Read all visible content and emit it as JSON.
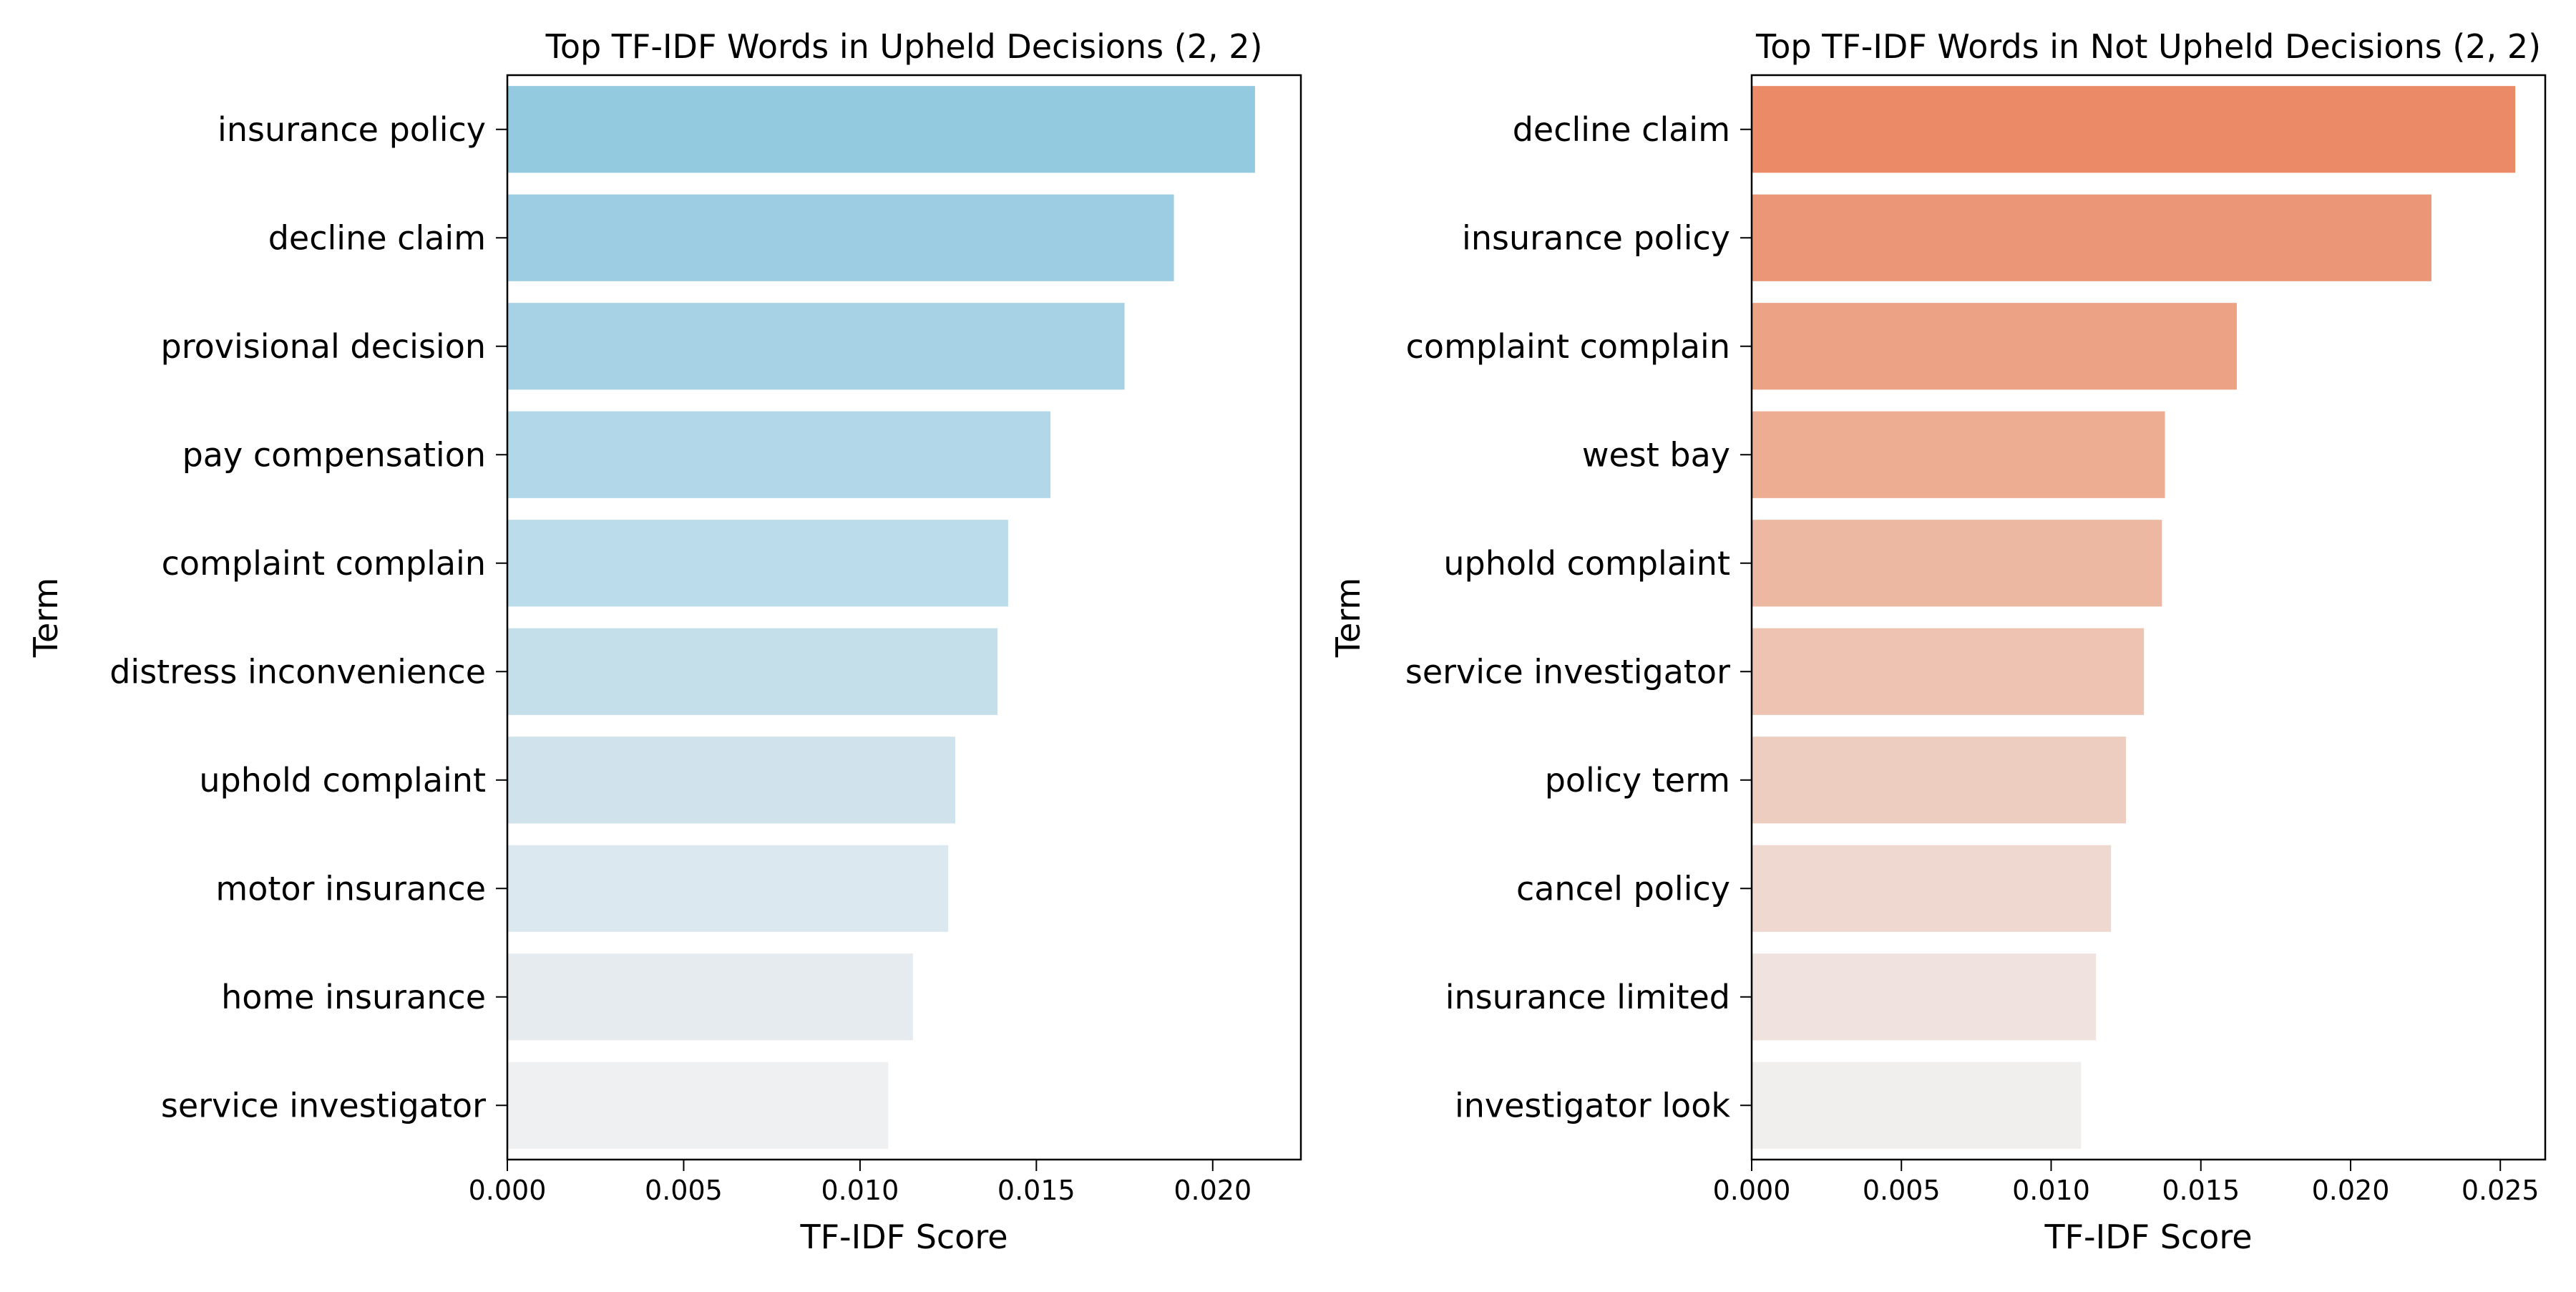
{
  "chart_data": [
    {
      "type": "bar",
      "orientation": "horizontal",
      "title": "Top TF-IDF Words in Upheld Decisions (2, 2)",
      "xlabel": "TF-IDF Score",
      "ylabel": "Term",
      "xlim": [
        0,
        0.0225
      ],
      "xticks": [
        "0.000",
        "0.005",
        "0.010",
        "0.015",
        "0.020"
      ],
      "grid": false,
      "categories": [
        "insurance policy",
        "decline claim",
        "provisional decision",
        "pay compensation",
        "complaint complain",
        "distress inconvenience",
        "uphold complaint",
        "motor insurance",
        "home insurance",
        "service investigator"
      ],
      "values": [
        0.0212,
        0.0189,
        0.0175,
        0.0154,
        0.0142,
        0.0139,
        0.0127,
        0.0125,
        0.0115,
        0.0108
      ],
      "colors": [
        "#93CAE0",
        "#9DCDE2",
        "#A7D2E5",
        "#B1D7E8",
        "#BBDCEA",
        "#C5DFEA",
        "#D0E3EC",
        "#DBE8EF",
        "#E5EBEF",
        "#EFF0F2"
      ]
    },
    {
      "type": "bar",
      "orientation": "horizontal",
      "title": "Top TF-IDF Words in Not Upheld Decisions (2, 2)",
      "xlabel": "TF-IDF Score",
      "ylabel": "Term",
      "xlim": [
        0,
        0.0265
      ],
      "xticks": [
        "0.000",
        "0.005",
        "0.010",
        "0.015",
        "0.020",
        "0.025"
      ],
      "grid": false,
      "categories": [
        "decline claim",
        "insurance policy",
        "complaint complain",
        "west bay",
        "uphold complaint",
        "service investigator",
        "policy term",
        "cancel policy",
        "insurance limited",
        "investigator look"
      ],
      "values": [
        0.0255,
        0.0227,
        0.0162,
        0.0138,
        0.0137,
        0.0131,
        0.0125,
        0.012,
        0.0115,
        0.011
      ],
      "colors": [
        "#EA8A67",
        "#EB9676",
        "#ECA285",
        "#ECAD93",
        "#EDB8A2",
        "#EEC3B2",
        "#EECDC1",
        "#EFD8CF",
        "#F0E3DF",
        "#F1EEEE"
      ]
    }
  ]
}
